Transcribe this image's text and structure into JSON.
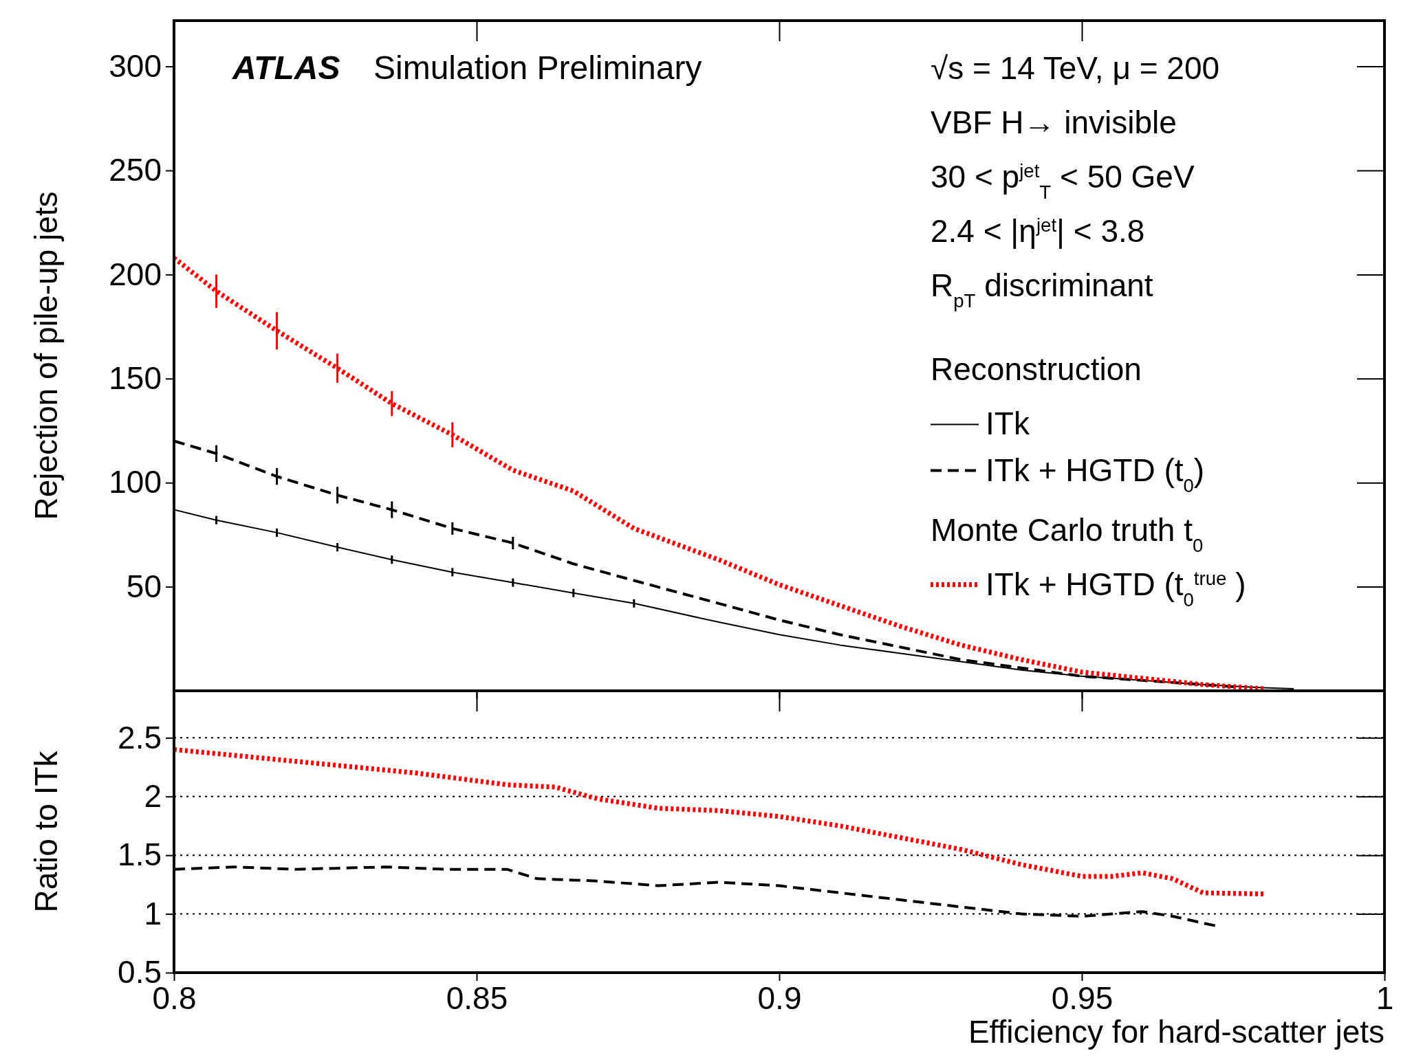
{
  "chart_data": [
    {
      "type": "line",
      "ylabel": "Rejection of pile-up jets",
      "xlim": [
        0.8,
        1
      ],
      "xticks": [
        0.8,
        0.85,
        0.9,
        0.95,
        1
      ],
      "ylim": [
        0,
        322
      ],
      "yticks": [
        50,
        100,
        150,
        200,
        250,
        300
      ],
      "tick_labels": "y",
      "legend": "right",
      "legend_title": "Reconstruction",
      "annotations": [
        "ATLAS",
        "Simulation Preliminary",
        "√s = 14 TeV, μ = 200",
        "VBF H→ invisible",
        "30 < p$^{jet}$$_{T}$ < 50 GeV",
        "2.4 < |η$^{jet}$| < 3.8",
        "R$_{pT}$ discriminant",
        "Monte Carlo truth t$_{0}$"
      ],
      "series": [
        {
          "name": "ITk",
          "color": "#000000",
          "line_style": "solid",
          "x": [
            0.8,
            0.807,
            0.817,
            0.827,
            0.836,
            0.846,
            0.856,
            0.866,
            0.876,
            0.89,
            0.9,
            0.91,
            0.92,
            0.93,
            0.94,
            0.95,
            0.96,
            0.97,
            0.98,
            0.985
          ],
          "values": [
            87,
            82,
            76,
            69,
            63,
            57,
            52,
            47,
            42,
            33,
            27,
            22,
            18,
            14,
            10,
            7,
            5,
            3,
            1.5,
            1
          ],
          "errors": [
            null,
            2,
            2,
            2,
            2,
            2,
            2,
            2,
            2,
            null,
            null,
            null,
            null,
            null,
            null,
            null,
            null,
            null,
            null,
            null
          ]
        },
        {
          "name": "ITk + HGTD (t$_{0}$)",
          "color": "#000000",
          "line_style": "dashed",
          "x": [
            0.8,
            0.807,
            0.817,
            0.827,
            0.836,
            0.846,
            0.856,
            0.866,
            0.876,
            0.89,
            0.9,
            0.91,
            0.92,
            0.93,
            0.94,
            0.95,
            0.96,
            0.97,
            0.975
          ],
          "values": [
            120,
            114,
            103,
            94,
            87,
            78,
            71,
            61,
            53,
            42,
            34,
            27,
            21,
            15,
            11,
            7,
            5,
            3,
            2
          ],
          "errors": [
            null,
            4,
            4,
            4,
            4,
            3,
            3,
            null,
            null,
            null,
            null,
            null,
            null,
            null,
            null,
            null,
            null,
            null,
            null
          ]
        },
        {
          "name": "ITk + HGTD (t$_{0}$$^{true}$ )",
          "color": "#ff0000",
          "line_style": "dotted",
          "x": [
            0.8,
            0.807,
            0.817,
            0.827,
            0.836,
            0.846,
            0.856,
            0.866,
            0.876,
            0.89,
            0.9,
            0.91,
            0.92,
            0.93,
            0.94,
            0.95,
            0.96,
            0.97,
            0.98
          ],
          "values": [
            208,
            192,
            173,
            155,
            138,
            123,
            106,
            96,
            78,
            63,
            51,
            41,
            31,
            22,
            15,
            9,
            6,
            3,
            1
          ],
          "errors": [
            null,
            8,
            9,
            7,
            6,
            6,
            null,
            null,
            null,
            null,
            null,
            null,
            null,
            null,
            null,
            null,
            null,
            null,
            null
          ]
        }
      ]
    },
    {
      "type": "line",
      "ylabel": "Ratio to ITk",
      "xlabel": "Efficiency for hard-scatter jets",
      "xlim": [
        0.8,
        1
      ],
      "xticks": [
        0.8,
        0.85,
        0.9,
        0.95,
        1
      ],
      "ylim": [
        0.5,
        2.9
      ],
      "yticks": [
        0.5,
        1,
        1.5,
        2,
        2.5
      ],
      "grid": "y",
      "series": [
        {
          "color": "#ff0000",
          "line_style": "dotted",
          "x": [
            0.8,
            0.82,
            0.84,
            0.855,
            0.863,
            0.87,
            0.88,
            0.89,
            0.9,
            0.91,
            0.92,
            0.93,
            0.94,
            0.95,
            0.955,
            0.96,
            0.965,
            0.97,
            0.98
          ],
          "values": [
            2.4,
            2.3,
            2.2,
            2.1,
            2.08,
            1.98,
            1.9,
            1.88,
            1.83,
            1.75,
            1.65,
            1.55,
            1.42,
            1.32,
            1.32,
            1.35,
            1.3,
            1.18,
            1.17
          ]
        },
        {
          "color": "#000000",
          "line_style": "dashed",
          "x": [
            0.8,
            0.81,
            0.82,
            0.835,
            0.845,
            0.855,
            0.86,
            0.87,
            0.88,
            0.89,
            0.9,
            0.91,
            0.92,
            0.93,
            0.94,
            0.95,
            0.955,
            0.96,
            0.965,
            0.972
          ],
          "values": [
            1.38,
            1.4,
            1.38,
            1.4,
            1.38,
            1.38,
            1.3,
            1.28,
            1.24,
            1.27,
            1.24,
            1.18,
            1.12,
            1.06,
            1.0,
            0.98,
            1.0,
            1.02,
            0.98,
            0.9
          ]
        }
      ]
    }
  ]
}
